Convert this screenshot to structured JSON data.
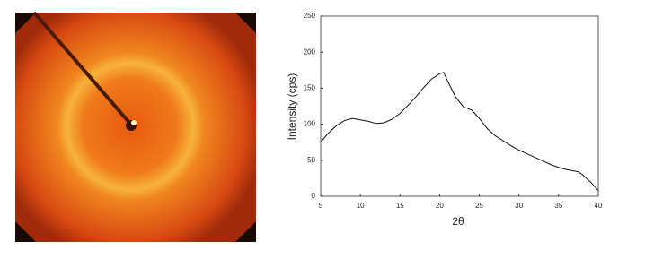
{
  "chart_data": {
    "type": "line",
    "x_label": "2θ",
    "y_label": "Intensity (cps)",
    "x": [
      5,
      6,
      7,
      8,
      9,
      10,
      11,
      12,
      13,
      14,
      15,
      16,
      17,
      18,
      19,
      20,
      20.5,
      21,
      22,
      23,
      24,
      25,
      26,
      27,
      28,
      29,
      30,
      31,
      32,
      33,
      34,
      35,
      36,
      37,
      37.5,
      38,
      39,
      40
    ],
    "series": [
      {
        "color": "#111111",
        "values": [
          75,
          88,
          98,
          105,
          108,
          106,
          104,
          101,
          102,
          107,
          115,
          126,
          138,
          151,
          163,
          170,
          172,
          160,
          138,
          124,
          120,
          108,
          94,
          84,
          77,
          70,
          64,
          59,
          54,
          49,
          44,
          40,
          37,
          35,
          34,
          30,
          20,
          8
        ]
      }
    ],
    "xlim": [
      5,
      40
    ],
    "xticks": [
      5,
      10,
      15,
      20,
      25,
      30,
      35,
      40
    ],
    "ylim": [
      0,
      250
    ],
    "yticks": [
      0,
      50,
      100,
      150,
      200,
      250
    ]
  }
}
